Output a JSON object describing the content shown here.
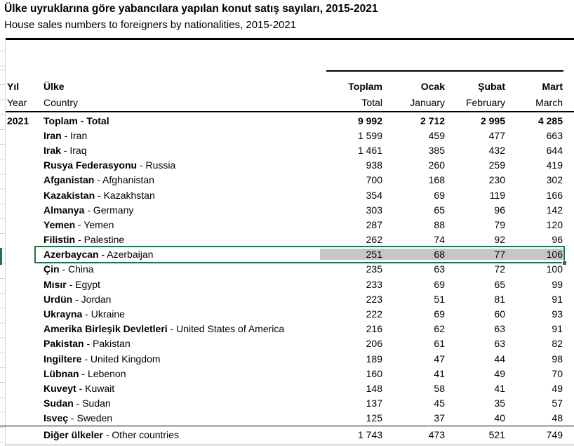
{
  "title": "Ülke uyruklarına göre yabancılara yapılan konut satış sayıları, 2015-2021",
  "subtitle": "House sales numbers to foreigners by nationalities, 2015-2021",
  "columns": {
    "year": {
      "tr": "Yıl",
      "en": "Year"
    },
    "country": {
      "tr": "Ülke",
      "en": "Country"
    },
    "months": [
      {
        "tr": "Toplam",
        "en": "Total"
      },
      {
        "tr": "Ocak",
        "en": "January"
      },
      {
        "tr": "Şubat",
        "en": "February"
      },
      {
        "tr": "Mart",
        "en": "March"
      }
    ]
  },
  "table": {
    "rows": [
      {
        "year": "2021",
        "tr": "Toplam",
        "en": "Total",
        "values": [
          "9 992",
          "2 712",
          "2 995",
          "4 285"
        ],
        "total": true
      },
      {
        "year": "",
        "tr": "Iran",
        "en": "Iran",
        "values": [
          "1 599",
          "459",
          "477",
          "663"
        ]
      },
      {
        "year": "",
        "tr": "Irak",
        "en": "Iraq",
        "values": [
          "1 461",
          "385",
          "432",
          "644"
        ]
      },
      {
        "year": "",
        "tr": "Rusya Federasyonu",
        "en": "Russia",
        "values": [
          "938",
          "260",
          "259",
          "419"
        ]
      },
      {
        "year": "",
        "tr": "Afganistan",
        "en": "Afghanistan",
        "values": [
          "700",
          "168",
          "230",
          "302"
        ]
      },
      {
        "year": "",
        "tr": "Kazakistan",
        "en": "Kazakhstan",
        "values": [
          "354",
          "69",
          "119",
          "166"
        ]
      },
      {
        "year": "",
        "tr": "Almanya",
        "en": "Germany",
        "values": [
          "303",
          "65",
          "96",
          "142"
        ]
      },
      {
        "year": "",
        "tr": "Yemen",
        "en": "Yemen",
        "values": [
          "287",
          "88",
          "79",
          "120"
        ]
      },
      {
        "year": "",
        "tr": "Filistin",
        "en": "Palestine",
        "values": [
          "262",
          "74",
          "92",
          "96"
        ]
      },
      {
        "year": "",
        "tr": "Azerbaycan",
        "en": "Azerbaijan",
        "values": [
          "251",
          "68",
          "77",
          "106"
        ],
        "selected": true
      },
      {
        "year": "",
        "tr": "Çin",
        "en": "China",
        "values": [
          "235",
          "63",
          "72",
          "100"
        ]
      },
      {
        "year": "",
        "tr": "Mısır",
        "en": "Egypt",
        "values": [
          "233",
          "69",
          "65",
          "99"
        ]
      },
      {
        "year": "",
        "tr": "Urdün",
        "en": "Jordan",
        "values": [
          "223",
          "51",
          "81",
          "91"
        ]
      },
      {
        "year": "",
        "tr": "Ukrayna",
        "en": "Ukraine",
        "values": [
          "222",
          "69",
          "60",
          "93"
        ]
      },
      {
        "year": "",
        "tr": "Amerika Birleşik Devletleri",
        "en": "United States of America",
        "values": [
          "216",
          "62",
          "63",
          "91"
        ]
      },
      {
        "year": "",
        "tr": "Pakistan",
        "en": "Pakistan",
        "values": [
          "206",
          "61",
          "63",
          "82"
        ]
      },
      {
        "year": "",
        "tr": "Ingiltere",
        "en": "United Kingdom",
        "values": [
          "189",
          "47",
          "44",
          "98"
        ]
      },
      {
        "year": "",
        "tr": "Lübnan",
        "en": "Lebenon",
        "values": [
          "160",
          "41",
          "49",
          "70"
        ]
      },
      {
        "year": "",
        "tr": "Kuveyt",
        "en": "Kuwait",
        "values": [
          "148",
          "58",
          "41",
          "49"
        ]
      },
      {
        "year": "",
        "tr": "Sudan",
        "en": "Sudan",
        "values": [
          "137",
          "45",
          "35",
          "57"
        ]
      },
      {
        "year": "",
        "tr": "Isveç",
        "en": "Sweden",
        "values": [
          "125",
          "37",
          "40",
          "48"
        ]
      },
      {
        "year": "",
        "tr": "Diğer ülkeler",
        "en": "Other countries",
        "values": [
          "1 743",
          "473",
          "521",
          "749"
        ],
        "last": true
      }
    ]
  },
  "selection": {
    "border_color": "#217346",
    "fill_color": "#c6c6c6"
  }
}
